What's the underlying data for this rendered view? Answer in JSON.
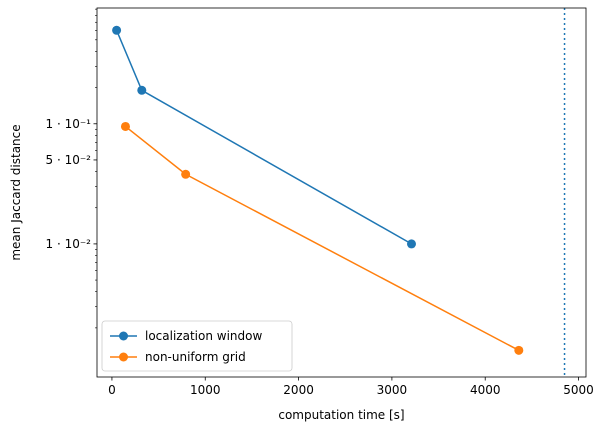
{
  "chart_data": {
    "type": "line",
    "title": "",
    "xlabel": "computation time [s]",
    "ylabel": "mean Jaccard distance",
    "xscale": "linear",
    "yscale": "log",
    "xlim": [
      -160,
      5080
    ],
    "ylim": [
      0.00078,
      0.92
    ],
    "grid": false,
    "legend_position": "lower-left",
    "x_ticks": [
      {
        "value": 0,
        "label": "0"
      },
      {
        "value": 1000,
        "label": "1000"
      },
      {
        "value": 2000,
        "label": "2000"
      },
      {
        "value": 3000,
        "label": "3000"
      },
      {
        "value": 4000,
        "label": "4000"
      },
      {
        "value": 5000,
        "label": "5000"
      }
    ],
    "y_ticks": [
      {
        "value": 0.1,
        "label": "1 · 10⁻¹"
      },
      {
        "value": 0.05,
        "label": "5 · 10⁻²"
      },
      {
        "value": 0.01,
        "label": "1 · 10⁻²"
      }
    ],
    "y_minor_ticks": [
      0.002,
      0.003,
      0.004,
      0.005,
      0.006,
      0.007,
      0.008,
      0.009,
      0.02,
      0.03,
      0.04,
      0.06,
      0.07,
      0.08,
      0.09,
      0.2,
      0.3,
      0.4,
      0.5,
      0.6,
      0.7,
      0.8,
      0.9
    ],
    "series": [
      {
        "name": "localization window",
        "color": "#1f77b4",
        "marker": "circle",
        "x": [
          50,
          320,
          3210
        ],
        "y": [
          0.6,
          0.19,
          0.01
        ]
      },
      {
        "name": "non-uniform grid",
        "color": "#ff7f0e",
        "marker": "circle",
        "x": [
          145,
          790,
          4360
        ],
        "y": [
          0.095,
          0.038,
          0.0013
        ]
      }
    ],
    "reference_lines": [
      {
        "orientation": "vertical",
        "x": 4850,
        "color": "#1f77b4",
        "style": "dotted"
      }
    ]
  }
}
